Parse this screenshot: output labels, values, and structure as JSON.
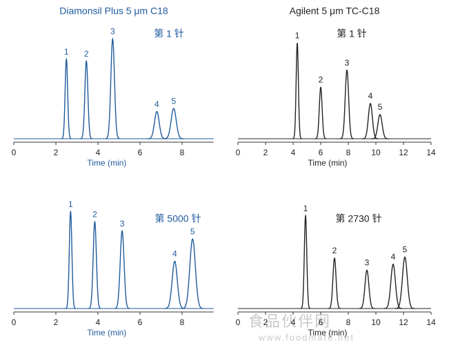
{
  "chart_data": [
    {
      "type": "chromatogram",
      "title": "Diamonsil Plus 5 μm C18",
      "annotation": "第 1 针",
      "color": "#1f5a9c",
      "x_label": "Time (min)",
      "xlim": [
        0,
        9.5
      ],
      "xticks": [
        0,
        2,
        4,
        6,
        8
      ],
      "ylim": [
        0,
        100
      ],
      "peak_labels": [
        "1",
        "2",
        "3",
        "4",
        "5"
      ],
      "x": [
        2.5,
        3.45,
        4.7,
        6.8,
        7.6
      ],
      "values": [
        79,
        77,
        99,
        27,
        30
      ]
    },
    {
      "type": "chromatogram",
      "title": "Agilent 5 μm TC-C18",
      "annotation": "第 1 针",
      "color": "#222222",
      "x_label": "Time (min)",
      "xlim": [
        0,
        14
      ],
      "xticks": [
        0,
        2,
        4,
        6,
        8,
        10,
        12,
        14
      ],
      "ylim": [
        0,
        100
      ],
      "peak_labels": [
        "1",
        "2",
        "3",
        "4",
        "5"
      ],
      "x": [
        4.3,
        6.0,
        7.9,
        9.6,
        10.3
      ],
      "values": [
        95,
        51,
        68,
        35,
        24
      ]
    },
    {
      "type": "chromatogram",
      "annotation": "第 5000 针",
      "color": "#1f5a9c",
      "x_label": "Time (min)",
      "xlim": [
        0,
        9.5
      ],
      "xticks": [
        0,
        2,
        4,
        6,
        8
      ],
      "ylim": [
        0,
        100
      ],
      "peak_labels": [
        "1",
        "2",
        "3",
        "4",
        "5"
      ],
      "x": [
        2.7,
        3.85,
        5.15,
        7.65,
        8.5
      ],
      "values": [
        96,
        86,
        77,
        47,
        69
      ]
    },
    {
      "type": "chromatogram",
      "annotation": "第 2730 针",
      "color": "#222222",
      "x_label": "Time (min)",
      "xlim": [
        0,
        14
      ],
      "xticks": [
        0,
        2,
        4,
        6,
        8,
        10,
        12,
        14
      ],
      "ylim": [
        0,
        100
      ],
      "peak_labels": [
        "1",
        "2",
        "3",
        "4",
        "5"
      ],
      "x": [
        4.9,
        7.0,
        9.35,
        11.25,
        12.1
      ],
      "values": [
        92,
        50,
        38,
        44,
        51
      ]
    }
  ],
  "watermark": {
    "title": "食品伙伴网",
    "url": "www.foodmate.net"
  }
}
